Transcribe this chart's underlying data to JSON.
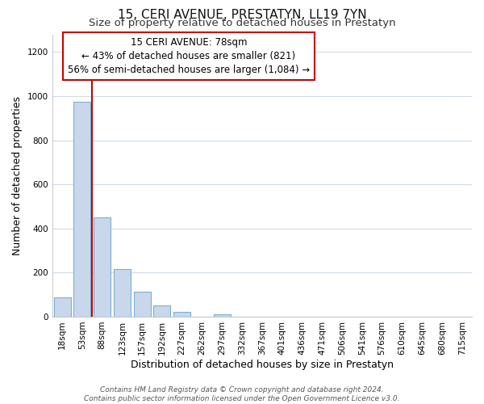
{
  "title": "15, CERI AVENUE, PRESTATYN, LL19 7YN",
  "subtitle": "Size of property relative to detached houses in Prestatyn",
  "xlabel": "Distribution of detached houses by size in Prestatyn",
  "ylabel": "Number of detached properties",
  "bar_labels": [
    "18sqm",
    "53sqm",
    "88sqm",
    "123sqm",
    "157sqm",
    "192sqm",
    "227sqm",
    "262sqm",
    "297sqm",
    "332sqm",
    "367sqm",
    "401sqm",
    "436sqm",
    "471sqm",
    "506sqm",
    "541sqm",
    "576sqm",
    "610sqm",
    "645sqm",
    "680sqm",
    "715sqm"
  ],
  "bar_values": [
    88,
    975,
    450,
    215,
    115,
    50,
    20,
    0,
    10,
    0,
    0,
    0,
    0,
    0,
    0,
    0,
    0,
    0,
    0,
    0,
    0
  ],
  "bar_color": "#c8d8ea",
  "bar_edge_color": "#7bafd4",
  "marker_line_color": "#cc0000",
  "marker_line_xindex": 1.5,
  "annotation_line1": "15 CERI AVENUE: 78sqm",
  "annotation_line2": "← 43% of detached houses are smaller (821)",
  "annotation_line3": "56% of semi-detached houses are larger (1,084) →",
  "ylim": [
    0,
    1280
  ],
  "yticks": [
    0,
    200,
    400,
    600,
    800,
    1000,
    1200
  ],
  "footer_line1": "Contains HM Land Registry data © Crown copyright and database right 2024.",
  "footer_line2": "Contains public sector information licensed under the Open Government Licence v3.0.",
  "bg_color": "#ffffff",
  "grid_color": "#d0dcec",
  "title_fontsize": 11,
  "subtitle_fontsize": 9.5,
  "axis_label_fontsize": 9,
  "tick_fontsize": 7.5,
  "footer_fontsize": 6.5,
  "annot_fontsize": 8.5
}
